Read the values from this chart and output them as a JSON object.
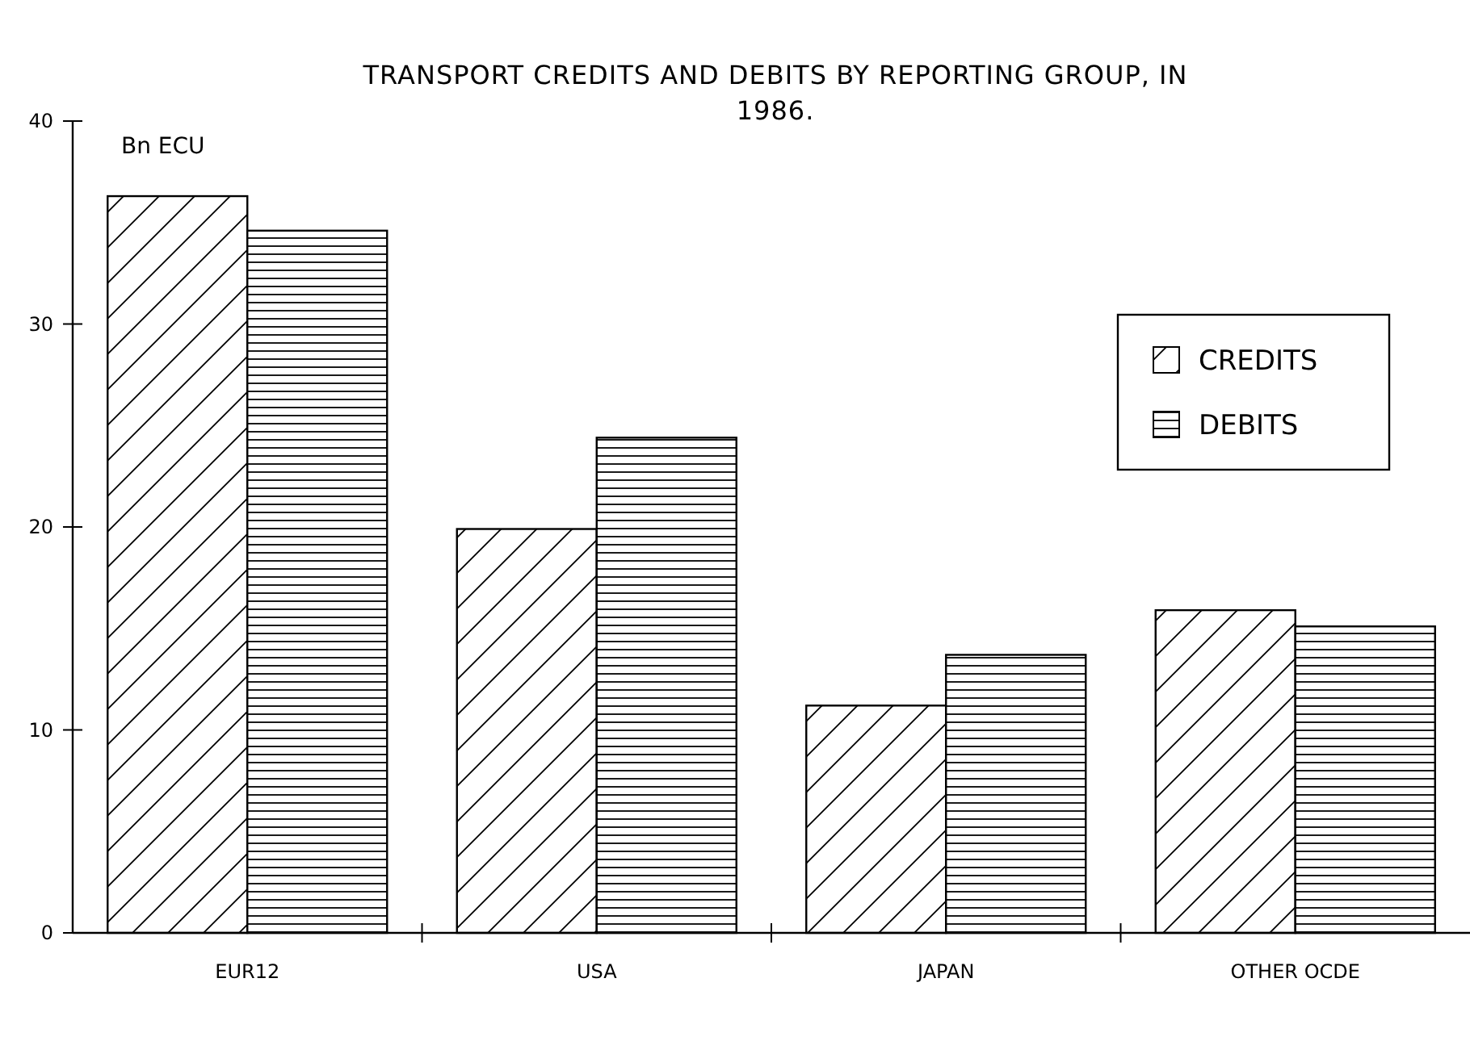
{
  "chart_data": {
    "type": "bar",
    "title": "TRANSPORT CREDITS AND DEBITS BY REPORTING GROUP, IN 1986.",
    "ylabel": "Bn ECU",
    "categories": [
      "EUR12",
      "USA",
      "JAPAN",
      "OTHER OCDE"
    ],
    "series": [
      {
        "name": "CREDITS",
        "color": "#000000",
        "values": [
          36.3,
          19.9,
          11.2,
          15.9
        ]
      },
      {
        "name": "DEBITS",
        "color": "#000000",
        "values": [
          34.6,
          24.4,
          13.7,
          15.1
        ]
      }
    ],
    "ylim": [
      0,
      40
    ],
    "yticks": [
      0,
      10,
      20,
      30,
      40
    ],
    "grid": false,
    "legend": "top right"
  }
}
